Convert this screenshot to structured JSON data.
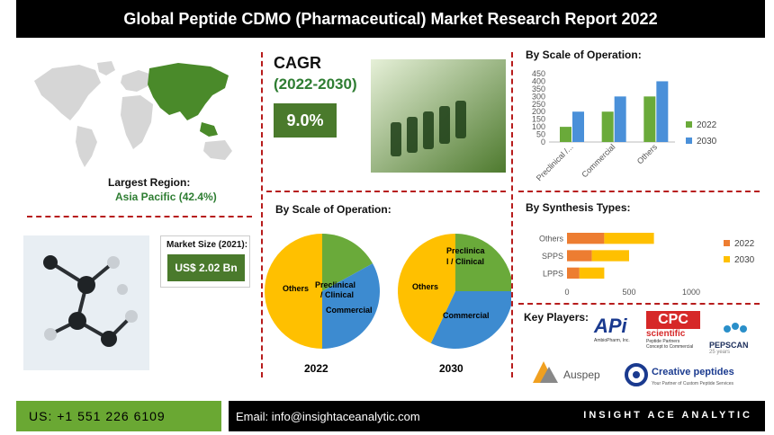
{
  "header": {
    "title": "Global  Peptide CDMO (Pharmaceutical) Market Research Report 2022"
  },
  "region": {
    "label": "Largest Region:",
    "value": "Asia Pacific (42.4%)"
  },
  "cagr": {
    "label": "CAGR",
    "period": "(2022-2030)",
    "value": "9.0%"
  },
  "market_size": {
    "label": "Market Size (2021):",
    "value": "US$ 2.02 Bn"
  },
  "pies": {
    "title": "By Scale of Operation:",
    "charts": [
      {
        "year": "2022",
        "slices": [
          {
            "label": "Preclinical / Clinical",
            "value": 17,
            "color": "#6aaa3a"
          },
          {
            "label": "Commercial",
            "value": 33,
            "color": "#3d8bd0"
          },
          {
            "label": "Others",
            "value": 50,
            "color": "#ffc000"
          }
        ]
      },
      {
        "year": "2030",
        "slices": [
          {
            "label": "Preclinical / Clinical",
            "value": 25,
            "color": "#6aaa3a"
          },
          {
            "label": "Commercial",
            "value": 32,
            "color": "#3d8bd0"
          },
          {
            "label": "Others",
            "value": 43,
            "color": "#ffc000"
          }
        ]
      }
    ],
    "labels_2022": [
      "Preclinical / Clinical",
      "Commercial",
      "Others"
    ],
    "labels_2030_a": "Preclinica",
    "labels_2030_b": "l / Clinical",
    "labels_2030_c": "Commercial",
    "labels_2030_d": "Others"
  },
  "chart_data": [
    {
      "type": "bar",
      "title": "By Scale of Operation:",
      "categories": [
        "Preclinical /...",
        "Commercial",
        "Others"
      ],
      "yticks": [
        "0",
        "50",
        "100",
        "150",
        "200",
        "250",
        "300",
        "350",
        "400",
        "450"
      ],
      "ylim": [
        0,
        450
      ],
      "series": [
        {
          "name": "2022",
          "values": [
            100,
            200,
            300
          ],
          "color": "#6aaa3a"
        },
        {
          "name": "2030",
          "values": [
            200,
            300,
            400
          ],
          "color": "#4a90d9"
        }
      ],
      "legend": "right"
    },
    {
      "type": "bar",
      "orientation": "horizontal",
      "stacked": true,
      "title": "By Synthesis Types:",
      "categories": [
        "Others",
        "SPPS",
        "LPPS"
      ],
      "xticks": [
        "0",
        "500",
        "1000"
      ],
      "xlim": [
        0,
        1000
      ],
      "series": [
        {
          "name": "2022",
          "values": [
            300,
            200,
            100
          ],
          "color": "#ed7d31"
        },
        {
          "name": "2030",
          "values": [
            400,
            300,
            200
          ],
          "color": "#ffc000"
        }
      ],
      "legend": "right"
    }
  ],
  "key_players": {
    "title": "Key Players:",
    "logos": [
      {
        "name": "APi",
        "sub": "AmbioPharm, Inc."
      },
      {
        "name": "CPC",
        "sub1": "scientific",
        "sub2": "Peptide Partners",
        "sub3": "Concept to Commercial"
      },
      {
        "name": "PEPSCAN",
        "sub": "25 years"
      },
      {
        "name": "Auspep"
      },
      {
        "name": "Creative peptides",
        "sub": "Your Partner of Custom Peptide Services"
      }
    ]
  },
  "footer": {
    "phone": "US: +1 551 226 6109",
    "email": "Email: info@insightaceanalytic.com",
    "brand": "INSIGHT ACE ANALYTIC"
  }
}
